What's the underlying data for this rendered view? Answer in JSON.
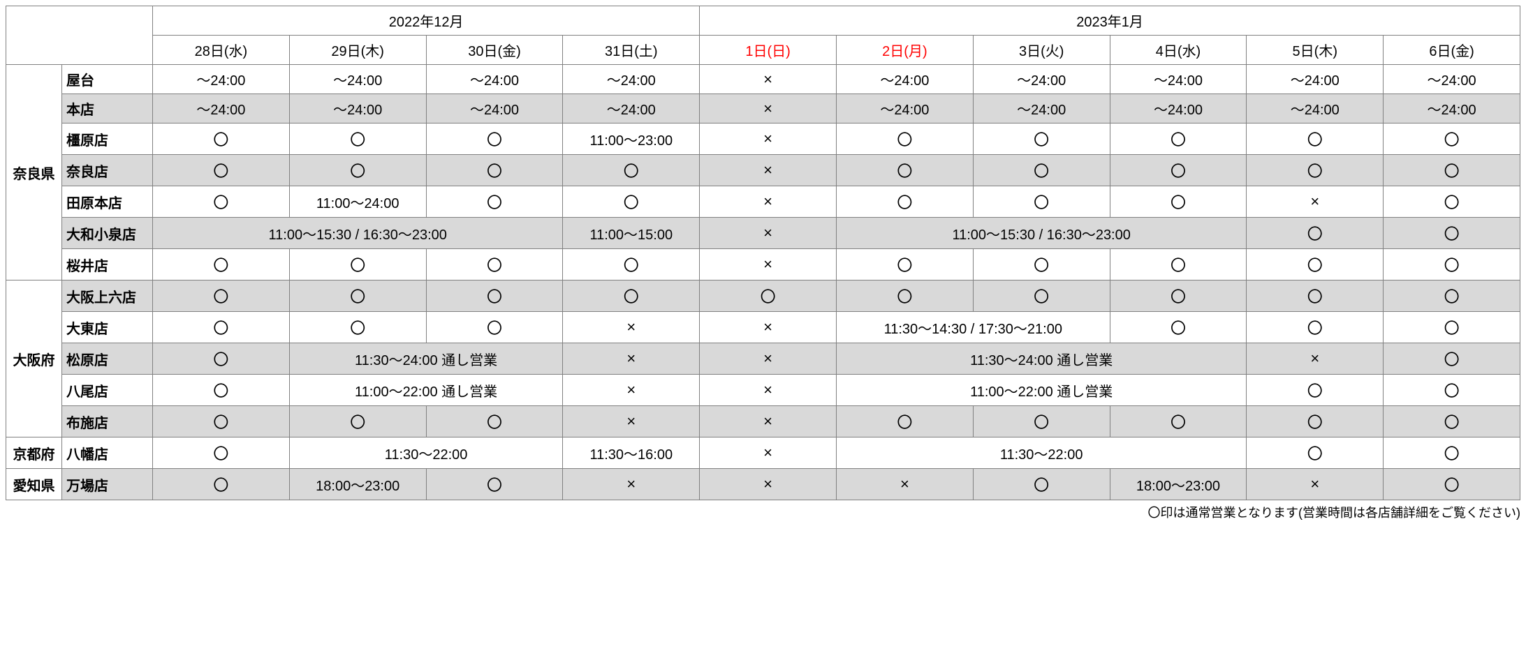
{
  "colors": {
    "shaded_bg": "#d9d9d9",
    "border": "#808080",
    "holiday_text": "#ff0000",
    "bg": "#ffffff",
    "text": "#000000"
  },
  "symbols": {
    "open": "〇",
    "closed": "×"
  },
  "months": {
    "dec": "2022年12月",
    "jan": "2023年1月"
  },
  "days": {
    "d28": "28日(水)",
    "d29": "29日(木)",
    "d30": "30日(金)",
    "d31": "31日(土)",
    "d1": "1日(日)",
    "d2": "2日(月)",
    "d3": "3日(火)",
    "d4": "4日(水)",
    "d5": "5日(木)",
    "d6": "6日(金)"
  },
  "prefs": {
    "nara": "奈良県",
    "osaka": "大阪府",
    "kyoto": "京都府",
    "aichi": "愛知県"
  },
  "stores": {
    "yatai": "屋台",
    "honten": "本店",
    "kashihara": "橿原店",
    "nara": "奈良店",
    "tawara": "田原本店",
    "yamato": "大和小泉店",
    "sakurai": "桜井店",
    "ueroku": "大阪上六店",
    "daito": "大東店",
    "matsubara": "松原店",
    "yao": "八尾店",
    "fuse": "布施店",
    "yawata": "八幡店",
    "mamba": "万場店"
  },
  "cells": {
    "t24": "～24:00",
    "h1123": "11:00～23:00",
    "h1124": "11:00～24:00",
    "ykoi_span": "11:00～15:30 / 16:30～23:00",
    "ykoi_31": "11:00～15:00",
    "daito_span": "11:30～14:30 / 17:30～21:00",
    "matsu_span": "11:30～24:00 通し営業",
    "yao_span": "11:00～22:00 通し営業",
    "yawata_span": "11:30～22:00",
    "yawata_31": "11:30～16:00",
    "mamba_1823": "18:00～23:00"
  },
  "footnote": "〇印は通常営業となります(営業時間は各店舗詳細をご覧ください)"
}
